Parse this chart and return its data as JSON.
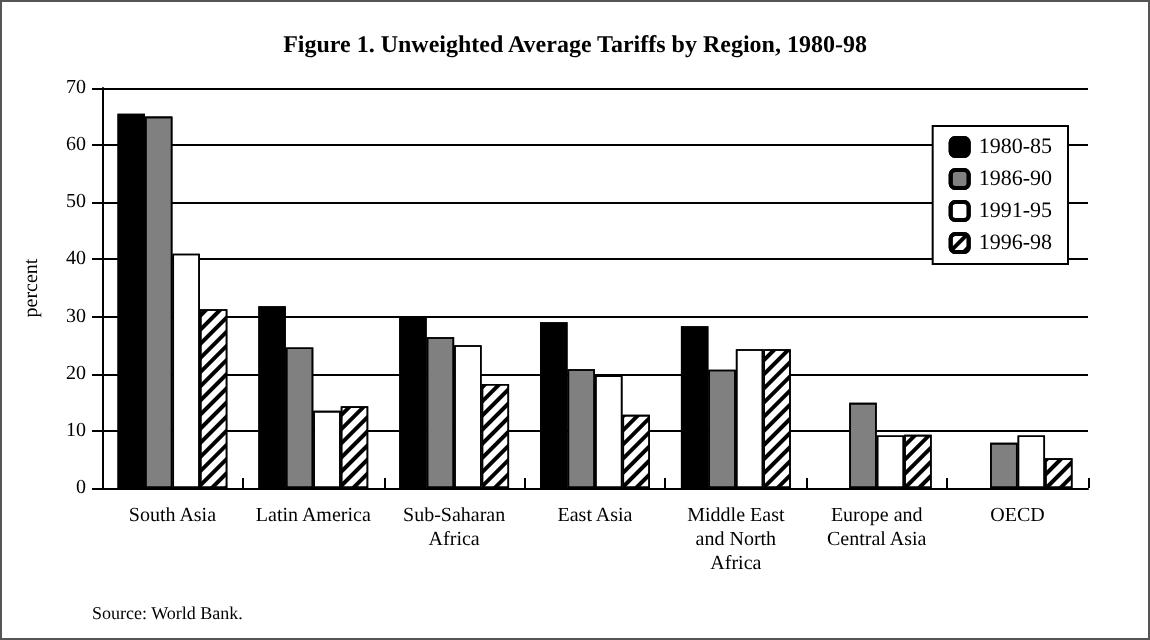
{
  "chart_data": {
    "type": "bar",
    "title": "Figure 1. Unweighted Average Tariffs by Region, 1980-98",
    "ylabel": "percent",
    "categories": [
      "South Asia",
      "Latin America",
      "Sub-Saharan\nAfrica",
      "East Asia",
      "Middle East\nand North\nAfrica",
      "Europe and\nCentral Asia",
      "OECD"
    ],
    "series": [
      {
        "name": "1980-85",
        "color": "#000000",
        "values": [
          65.5,
          31.8,
          30,
          29,
          28.3,
          null,
          null
        ]
      },
      {
        "name": "1986-90",
        "color": "#808080",
        "values": [
          65,
          24.6,
          26.4,
          20.8,
          20.7,
          14.9,
          7.9
        ]
      },
      {
        "name": "1991-95",
        "color": "#ffffff",
        "values": [
          41,
          13.5,
          25,
          19.7,
          24.3,
          9.2,
          9.2
        ]
      },
      {
        "name": "1996-98",
        "color": "#ffffff",
        "values": [
          31.3,
          14.3,
          18.2,
          12.8,
          24.3,
          9.3,
          5.2
        ]
      }
    ],
    "ylim": [
      0,
      70
    ],
    "yticks": [
      0,
      10,
      20,
      30,
      40,
      50,
      60,
      70
    ],
    "grid": "y",
    "legend": "top right",
    "annotations": [
      "Source: World Bank."
    ]
  }
}
